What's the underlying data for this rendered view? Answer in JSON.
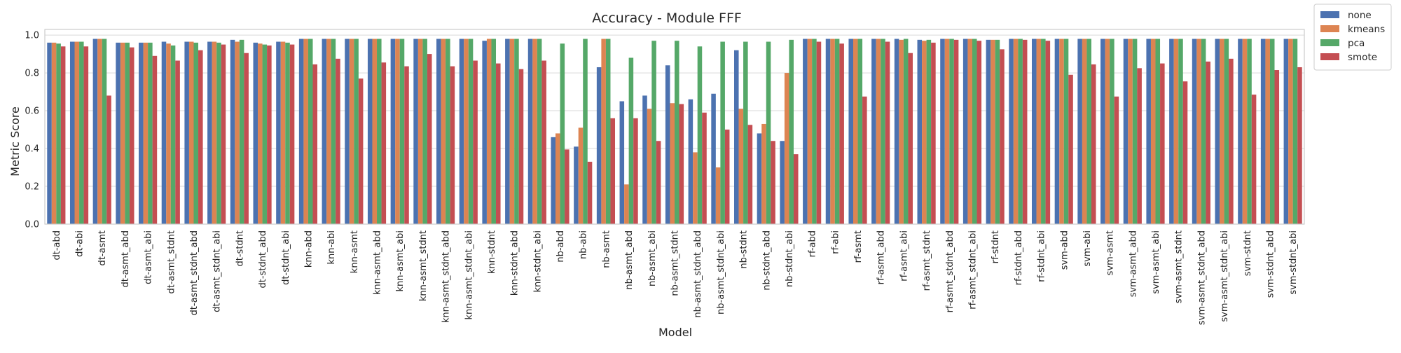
{
  "chart_data": {
    "type": "bar",
    "title": "Accuracy - Module FFF",
    "xlabel": "Model",
    "ylabel": "Metric Score",
    "ylim": [
      0,
      1.03
    ],
    "yticks": [
      "0.0",
      "0.2",
      "0.4",
      "0.6",
      "0.8",
      "1.0"
    ],
    "grid": true,
    "legend_position": "outside-top-right",
    "categories": [
      "dt-abd",
      "dt-abi",
      "dt-asmt",
      "dt-asmt_abd",
      "dt-asmt_abi",
      "dt-asmt_stdnt",
      "dt-asmt_stdnt_abd",
      "dt-asmt_stdnt_abi",
      "dt-stdnt",
      "dt-stdnt_abd",
      "dt-stdnt_abi",
      "knn-abd",
      "knn-abi",
      "knn-asmt",
      "knn-asmt_abd",
      "knn-asmt_abi",
      "knn-asmt_stdnt",
      "knn-asmt_stdnt_abd",
      "knn-asmt_stdnt_abi",
      "knn-stdnt",
      "knn-stdnt_abd",
      "knn-stdnt_abi",
      "nb-abd",
      "nb-abi",
      "nb-asmt",
      "nb-asmt_abd",
      "nb-asmt_abi",
      "nb-asmt_stdnt",
      "nb-asmt_stdnt_abd",
      "nb-asmt_stdnt_abi",
      "nb-stdnt",
      "nb-stdnt_abd",
      "nb-stdnt_abi",
      "rf-abd",
      "rf-abi",
      "rf-asmt",
      "rf-asmt_abd",
      "rf-asmt_abi",
      "rf-asmt_stdnt",
      "rf-asmt_stdnt_abd",
      "rf-asmt_stdnt_abi",
      "rf-stdnt",
      "rf-stdnt_abd",
      "rf-stdnt_abi",
      "svm-abd",
      "svm-abi",
      "svm-asmt",
      "svm-asmt_abd",
      "svm-asmt_abi",
      "svm-asmt_stdnt",
      "svm-asmt_stdnt_abd",
      "svm-asmt_stdnt_abi",
      "svm-stdnt",
      "svm-stdnt_abd",
      "svm-stdnt_abi"
    ],
    "series": [
      {
        "name": "none",
        "color": "#4c72b0",
        "values": [
          0.96,
          0.965,
          0.98,
          0.96,
          0.96,
          0.965,
          0.965,
          0.965,
          0.975,
          0.96,
          0.965,
          0.98,
          0.98,
          0.98,
          0.98,
          0.98,
          0.98,
          0.98,
          0.98,
          0.97,
          0.98,
          0.98,
          0.46,
          0.41,
          0.83,
          0.65,
          0.68,
          0.84,
          0.66,
          0.69,
          0.92,
          0.48,
          0.44,
          0.98,
          0.98,
          0.98,
          0.98,
          0.98,
          0.975,
          0.98,
          0.98,
          0.975,
          0.98,
          0.98,
          0.98,
          0.98,
          0.98,
          0.98,
          0.98,
          0.98,
          0.98,
          0.98,
          0.98,
          0.98,
          0.98
        ]
      },
      {
        "name": "kmeans",
        "color": "#dd8452",
        "values": [
          0.96,
          0.965,
          0.98,
          0.96,
          0.96,
          0.955,
          0.965,
          0.965,
          0.965,
          0.955,
          0.965,
          0.98,
          0.98,
          0.98,
          0.98,
          0.98,
          0.98,
          0.98,
          0.98,
          0.98,
          0.98,
          0.98,
          0.48,
          0.51,
          0.98,
          0.21,
          0.61,
          0.64,
          0.38,
          0.3,
          0.61,
          0.53,
          0.8,
          0.98,
          0.98,
          0.98,
          0.98,
          0.975,
          0.97,
          0.98,
          0.98,
          0.975,
          0.98,
          0.98,
          0.98,
          0.98,
          0.98,
          0.98,
          0.98,
          0.98,
          0.98,
          0.98,
          0.98,
          0.98,
          0.98
        ]
      },
      {
        "name": "pca",
        "color": "#55a868",
        "values": [
          0.955,
          0.965,
          0.98,
          0.96,
          0.96,
          0.945,
          0.96,
          0.96,
          0.975,
          0.95,
          0.96,
          0.98,
          0.98,
          0.98,
          0.98,
          0.98,
          0.98,
          0.98,
          0.98,
          0.98,
          0.98,
          0.98,
          0.955,
          0.98,
          0.98,
          0.88,
          0.97,
          0.97,
          0.94,
          0.965,
          0.965,
          0.965,
          0.975,
          0.98,
          0.98,
          0.98,
          0.98,
          0.98,
          0.975,
          0.98,
          0.98,
          0.975,
          0.98,
          0.98,
          0.98,
          0.98,
          0.98,
          0.98,
          0.98,
          0.98,
          0.98,
          0.98,
          0.98,
          0.98,
          0.98
        ]
      },
      {
        "name": "smote",
        "color": "#c44e52",
        "values": [
          0.94,
          0.94,
          0.68,
          0.935,
          0.89,
          0.865,
          0.92,
          0.95,
          0.905,
          0.945,
          0.95,
          0.845,
          0.875,
          0.77,
          0.855,
          0.835,
          0.9,
          0.835,
          0.865,
          0.85,
          0.82,
          0.865,
          0.395,
          0.33,
          0.56,
          0.56,
          0.44,
          0.635,
          0.59,
          0.5,
          0.525,
          0.44,
          0.37,
          0.965,
          0.955,
          0.675,
          0.965,
          0.905,
          0.96,
          0.975,
          0.97,
          0.925,
          0.975,
          0.97,
          0.79,
          0.845,
          0.675,
          0.825,
          0.85,
          0.755,
          0.86,
          0.875,
          0.685,
          0.815,
          0.83
        ]
      }
    ]
  }
}
